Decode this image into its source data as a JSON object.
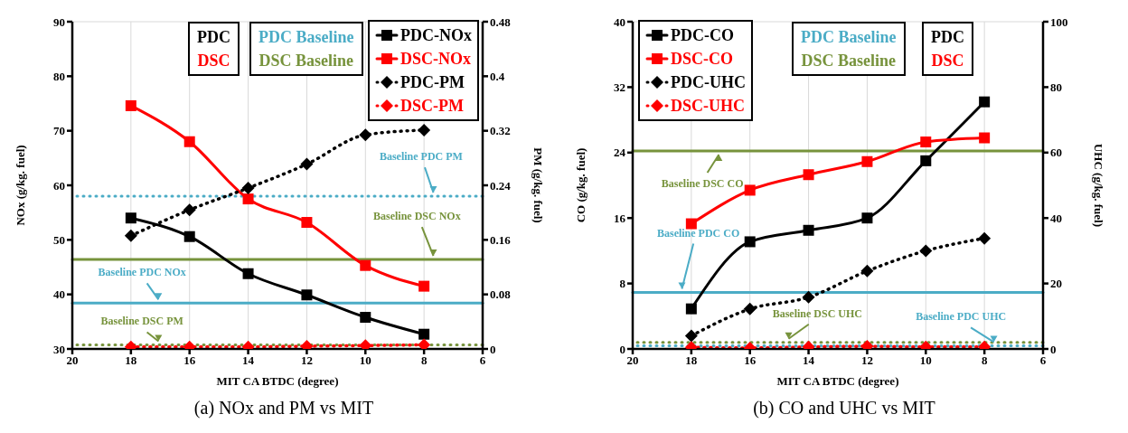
{
  "chart_data": [
    {
      "type": "line",
      "title": "(a) NOx and PM vs MIT",
      "xlabel": "MIT CA BTDC (degree)",
      "ylabel": "NOx (g/kg. fuel)",
      "y2label": "PM (g/kg. fuel)",
      "x": [
        18,
        16,
        14,
        12,
        10,
        8
      ],
      "xlim": [
        20,
        6
      ],
      "xticks": [
        20,
        18,
        16,
        14,
        12,
        10,
        8,
        6
      ],
      "ylim": [
        30,
        90
      ],
      "yticks": [
        30,
        40,
        50,
        60,
        70,
        80,
        90
      ],
      "y2lim": [
        0,
        0.48
      ],
      "y2ticks": [
        0,
        0.08,
        0.16,
        0.24,
        0.32,
        0.4,
        0.48
      ],
      "grid": true,
      "legend": "top right",
      "annotations": [
        "PDC",
        "DSC",
        "PDC Baseline",
        "DSC Baseline"
      ],
      "series": [
        {
          "name": "PDC-NOx",
          "color": "#000000",
          "marker": "square",
          "line_style": "solid",
          "values": [
            54,
            50.6,
            43.8,
            39.9,
            35.8,
            32.7
          ]
        },
        {
          "name": "DSC-NOx",
          "color": "#ff0000",
          "marker": "square",
          "line_style": "solid",
          "values": [
            74.6,
            68,
            57.5,
            53.2,
            45.3,
            41.5
          ]
        },
        {
          "name": "PDC-PM",
          "color": "#000000",
          "marker": "diamond",
          "line_style": "dotted",
          "axis": "y2",
          "values": [
            0.166,
            0.204,
            0.236,
            0.271,
            0.314,
            0.321
          ]
        },
        {
          "name": "DSC-PM",
          "color": "#ff0000",
          "marker": "diamond",
          "line_style": "dotted",
          "axis": "y2",
          "values": [
            0.003,
            0.003,
            0.003,
            0.004,
            0.005,
            0.006
          ]
        }
      ],
      "ref_lines": [
        {
          "axis": "y2",
          "value": 0.224,
          "label": "Baseline PDC PM",
          "color": "#4bacc6",
          "line_style": "dotted"
        },
        {
          "axis": "y",
          "value": 46.4,
          "label": "Baseline DSC NOx",
          "color": "#77933c",
          "line_style": "solid"
        },
        {
          "axis": "y",
          "value": 38.4,
          "label": "Baseline PDC NOx",
          "color": "#4bacc6",
          "line_style": "solid"
        },
        {
          "axis": "y2",
          "value": 0.006,
          "label": "Baseline DSC PM",
          "color": "#77933c",
          "line_style": "dotted"
        }
      ]
    },
    {
      "type": "line",
      "title": "(b) CO and UHC vs MIT",
      "xlabel": "MIT CA BTDC (degree)",
      "ylabel": "CO (g/kg. fuel)",
      "y2label": "UHC (g/kg. fuel)",
      "x": [
        18,
        16,
        14,
        12,
        10,
        8
      ],
      "xlim": [
        20,
        6
      ],
      "xticks": [
        20,
        18,
        16,
        14,
        12,
        10,
        8,
        6
      ],
      "ylim": [
        0,
        40
      ],
      "yticks": [
        0,
        8,
        16,
        24,
        32,
        40
      ],
      "y2lim": [
        0,
        100
      ],
      "y2ticks": [
        0,
        20,
        40,
        60,
        80,
        100
      ],
      "grid": true,
      "legend": "top left",
      "annotations": [
        "PDC Baseline",
        "DSC Baseline",
        "PDC",
        "DSC"
      ],
      "series": [
        {
          "name": "PDC-CO",
          "color": "#000000",
          "marker": "square",
          "line_style": "solid",
          "values": [
            4.9,
            13.1,
            14.5,
            16,
            23,
            30.2
          ]
        },
        {
          "name": "DSC-CO",
          "color": "#ff0000",
          "marker": "square",
          "line_style": "solid",
          "values": [
            15.3,
            19.4,
            21.3,
            22.9,
            25.3,
            25.8
          ]
        },
        {
          "name": "PDC-UHC",
          "color": "#000000",
          "marker": "diamond",
          "line_style": "dotted",
          "axis": "y2",
          "values": [
            4,
            12.2,
            15.8,
            23.8,
            30,
            33.8
          ]
        },
        {
          "name": "DSC-UHC",
          "color": "#ff0000",
          "marker": "diamond",
          "line_style": "dotted",
          "axis": "y2",
          "values": [
            0.5,
            0.3,
            0.6,
            0.8,
            0.6,
            0.6
          ]
        }
      ],
      "ref_lines": [
        {
          "axis": "y",
          "value": 24.2,
          "label": "Baseline DSC CO",
          "color": "#77933c",
          "line_style": "solid"
        },
        {
          "axis": "y",
          "value": 6.9,
          "label": "Baseline PDC CO",
          "color": "#4bacc6",
          "line_style": "solid"
        },
        {
          "axis": "y2",
          "value": 2,
          "label": "Baseline DSC UHC",
          "color": "#77933c",
          "line_style": "dotted"
        },
        {
          "axis": "y2",
          "value": 1,
          "label": "Baseline PDC UHC",
          "color": "#4bacc6",
          "line_style": "dotted"
        }
      ]
    }
  ]
}
